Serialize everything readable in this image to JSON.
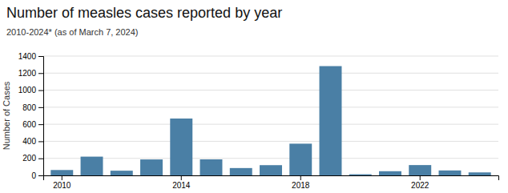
{
  "chart_data": {
    "type": "bar",
    "title": "Number of measles cases reported by year",
    "subtitle": "2010-2024* (as of March 7, 2024)",
    "ylabel": "Number of Cases",
    "categories": [
      2010,
      null,
      null,
      null,
      2014,
      null,
      null,
      null,
      2018,
      null,
      null,
      null,
      2022,
      null,
      null
    ],
    "values": [
      63,
      220,
      55,
      187,
      667,
      188,
      86,
      120,
      372,
      1282,
      13,
      49,
      121,
      58,
      35
    ],
    "color": "#4a7fa5",
    "ylim": [
      0,
      1400
    ],
    "yticks": [
      0,
      200,
      400,
      600,
      800,
      1000,
      1200,
      1400
    ],
    "grid": true
  }
}
